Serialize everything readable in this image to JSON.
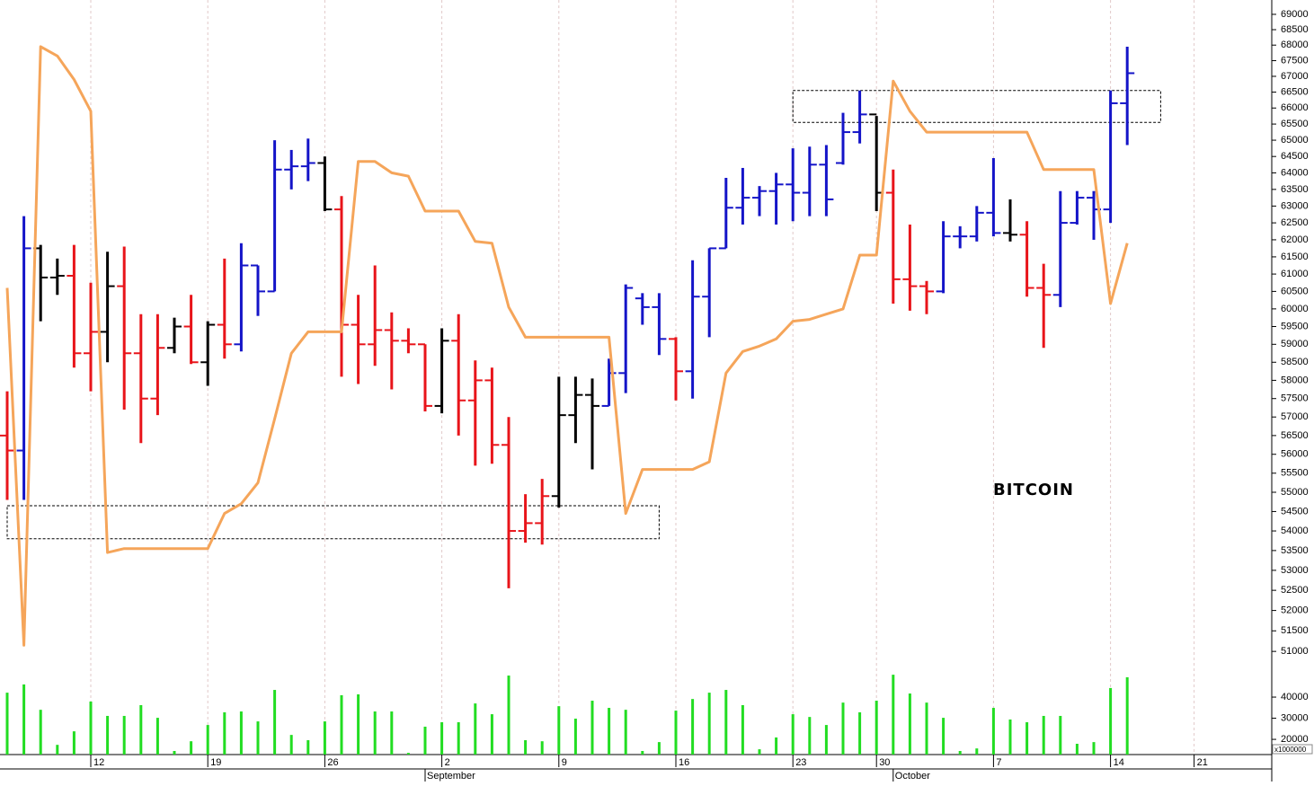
{
  "chart_data": {
    "type": "ohlc",
    "label": "BITCOIN",
    "y_scale": "log",
    "categories": [
      null,
      null,
      null,
      null,
      null,
      "12",
      null,
      null,
      null,
      null,
      null,
      null,
      "19",
      null,
      null,
      null,
      null,
      null,
      null,
      "26",
      null,
      null,
      null,
      null,
      null,
      null,
      "2",
      null,
      null,
      null,
      null,
      null,
      null,
      "9",
      null,
      null,
      null,
      null,
      null,
      null,
      "16",
      null,
      null,
      null,
      null,
      null,
      null,
      "23",
      null,
      null,
      null,
      null,
      "30",
      null,
      null,
      null,
      null,
      null,
      null,
      "7",
      null,
      null,
      null,
      null,
      null,
      null,
      "14",
      null,
      null,
      null,
      null,
      "21",
      null,
      null,
      null,
      null
    ],
    "month_labels": [
      null,
      null,
      null,
      null,
      null,
      null,
      null,
      null,
      null,
      null,
      null,
      null,
      null,
      null,
      null,
      null,
      null,
      null,
      null,
      null,
      null,
      null,
      null,
      null,
      null,
      "September",
      null,
      null,
      null,
      null,
      null,
      null,
      null,
      null,
      null,
      null,
      null,
      null,
      null,
      null,
      null,
      null,
      null,
      null,
      null,
      null,
      null,
      null,
      null,
      null,
      null,
      null,
      null,
      "October",
      null,
      null,
      null,
      null,
      null,
      null,
      null,
      null,
      null,
      null,
      null,
      null,
      null,
      null,
      null,
      null,
      null,
      null,
      null,
      null,
      null,
      null
    ],
    "open": [
      56500,
      56100,
      61750,
      60900,
      60950,
      58750,
      59350,
      60650,
      58750,
      57500,
      58900,
      59500,
      58500,
      59550,
      59000,
      61250,
      60500,
      64100,
      64200,
      64300,
      62900,
      59550,
      59000,
      59400,
      59100,
      59000,
      57300,
      59100,
      57450,
      58000,
      56250,
      54000,
      54200,
      54900,
      57050,
      57600,
      57300,
      58200,
      60300,
      60050,
      59150,
      58250,
      60350,
      61750,
      62950,
      63250,
      63450,
      63650,
      63400,
      64250,
      64300,
      65250,
      65800,
      63400,
      60850,
      60650,
      60500,
      62100,
      62100,
      62800,
      62200,
      62150,
      60600,
      60400,
      62500,
      63250,
      62900,
      66150,
      null,
      null,
      null,
      null,
      null,
      null,
      null,
      null
    ],
    "high": [
      57700,
      62700,
      61850,
      61450,
      61850,
      60750,
      61650,
      61800,
      59850,
      59850,
      59750,
      60400,
      59650,
      61450,
      61900,
      61250,
      65000,
      64700,
      65050,
      64500,
      63300,
      60400,
      61250,
      59900,
      59450,
      59000,
      59450,
      59850,
      58550,
      58350,
      57000,
      54950,
      55350,
      58100,
      58100,
      58050,
      58600,
      60700,
      60450,
      60450,
      59200,
      61400,
      61750,
      63850,
      64150,
      63600,
      64000,
      64750,
      64800,
      64850,
      65850,
      66550,
      65750,
      64100,
      62450,
      60800,
      62550,
      62400,
      63000,
      64450,
      63200,
      62550,
      61300,
      63450,
      63450,
      63450,
      66550,
      67950,
      null,
      null,
      null,
      null,
      null,
      null,
      null,
      null
    ],
    "low": [
      54800,
      54800,
      59650,
      60400,
      58350,
      57700,
      58500,
      57200,
      56300,
      57050,
      58750,
      58450,
      57850,
      58600,
      58800,
      59800,
      60500,
      63500,
      63750,
      62850,
      58100,
      57900,
      58400,
      57750,
      58750,
      57150,
      57100,
      56500,
      55700,
      55750,
      52550,
      53700,
      53650,
      54600,
      56300,
      55600,
      57300,
      57650,
      59550,
      58700,
      57450,
      57500,
      59200,
      61750,
      62450,
      62700,
      62450,
      62550,
      62700,
      62700,
      64250,
      64900,
      62850,
      60150,
      59950,
      59850,
      60450,
      61750,
      61950,
      62100,
      61950,
      60350,
      58900,
      60050,
      62450,
      62000,
      62500,
      64850,
      null,
      null,
      null,
      null,
      null,
      null,
      null,
      null
    ],
    "close": [
      56100,
      61750,
      60900,
      60950,
      58750,
      59350,
      60650,
      58750,
      57500,
      58900,
      59500,
      58500,
      59550,
      59000,
      61250,
      60500,
      64100,
      64200,
      64300,
      62900,
      59550,
      59000,
      59400,
      59100,
      59000,
      57300,
      59100,
      57450,
      58000,
      56250,
      54000,
      54200,
      54900,
      57050,
      57600,
      57300,
      58200,
      60600,
      60050,
      59150,
      58250,
      60350,
      61750,
      62950,
      63250,
      63450,
      63650,
      63400,
      64250,
      63200,
      65250,
      65800,
      63400,
      60850,
      60650,
      60500,
      62100,
      62100,
      62800,
      62200,
      62150,
      60600,
      60400,
      62500,
      63250,
      62900,
      66150,
      67100,
      null,
      null,
      null,
      null,
      null,
      null,
      null,
      null
    ],
    "bar_colors": [
      "#e8141a",
      "#1414c8",
      "#000000",
      "#000000",
      "#e8141a",
      "#e8141a",
      "#000000",
      "#e8141a",
      "#e8141a",
      "#e8141a",
      "#000000",
      "#e8141a",
      "#000000",
      "#e8141a",
      "#1414c8",
      "#1414c8",
      "#1414c8",
      "#1414c8",
      "#1414c8",
      "#000000",
      "#e8141a",
      "#e8141a",
      "#e8141a",
      "#e8141a",
      "#e8141a",
      "#e8141a",
      "#000000",
      "#e8141a",
      "#e8141a",
      "#e8141a",
      "#e8141a",
      "#e8141a",
      "#e8141a",
      "#000000",
      "#000000",
      "#000000",
      "#1414c8",
      "#1414c8",
      "#1414c8",
      "#1414c8",
      "#e8141a",
      "#1414c8",
      "#1414c8",
      "#1414c8",
      "#1414c8",
      "#1414c8",
      "#1414c8",
      "#1414c8",
      "#1414c8",
      "#1414c8",
      "#1414c8",
      "#1414c8",
      "#000000",
      "#e8141a",
      "#e8141a",
      "#e8141a",
      "#1414c8",
      "#1414c8",
      "#1414c8",
      "#1414c8",
      "#000000",
      "#e8141a",
      "#e8141a",
      "#1414c8",
      "#1414c8",
      "#1414c8",
      "#1414c8",
      "#1414c8",
      null,
      null,
      null,
      null,
      null,
      null,
      null,
      null
    ],
    "line": {
      "color": "#f5a55a",
      "values": [
        60600,
        51150,
        67950,
        67650,
        66900,
        65900,
        53450,
        53550,
        53550,
        53550,
        53550,
        53550,
        53550,
        54450,
        54700,
        55250,
        56950,
        58750,
        59350,
        59350,
        59350,
        64350,
        64350,
        64000,
        63900,
        62850,
        62850,
        62850,
        61950,
        61900,
        60050,
        59200,
        59200,
        59200,
        59200,
        59200,
        59200,
        54450,
        55600,
        55600,
        55600,
        55600,
        55800,
        58200,
        58800,
        58950,
        59150,
        59650,
        59700,
        59850,
        60000,
        61550,
        61550,
        66850,
        65900,
        65250,
        65250,
        65250,
        65250,
        65250,
        65250,
        65250,
        64100,
        64100,
        64100,
        64100,
        60150,
        61900,
        null,
        null,
        null,
        null,
        null,
        null,
        null,
        null
      ]
    },
    "ylim": [
      50700,
      69400
    ],
    "yticks": [
      51000,
      51500,
      52000,
      52500,
      53000,
      53500,
      54000,
      54500,
      55000,
      55500,
      56000,
      56500,
      57000,
      57500,
      58000,
      58500,
      59000,
      59500,
      60000,
      60500,
      61000,
      61500,
      62000,
      62500,
      63000,
      63500,
      64000,
      64500,
      65000,
      65500,
      66000,
      66500,
      67000,
      67500,
      68000,
      68500,
      69000
    ],
    "volume": {
      "color": "#22dd22",
      "unit_label": "x1000000",
      "values": [
        42100,
        46000,
        34000,
        17400,
        23800,
        37900,
        31100,
        31100,
        36200,
        30200,
        14500,
        19100,
        26800,
        32800,
        33200,
        28500,
        43400,
        22100,
        19600,
        28500,
        40900,
        41300,
        33200,
        33200,
        13600,
        26000,
        28100,
        28100,
        37000,
        31900,
        50200,
        19600,
        19100,
        35700,
        29800,
        38300,
        34900,
        34000,
        14500,
        18700,
        33600,
        39100,
        42100,
        43400,
        36200,
        15300,
        20900,
        31900,
        30600,
        26800,
        37400,
        32800,
        38300,
        50600,
        41700,
        37400,
        30200,
        14500,
        15700,
        34900,
        29400,
        28100,
        31100,
        31100,
        17900,
        18700,
        44300,
        49400,
        null,
        null,
        null,
        null,
        null,
        null,
        null,
        null
      ],
      "ylim": [
        12800,
        53200
      ],
      "yticks": [
        20000,
        30000,
        40000
      ]
    },
    "boxes": [
      {
        "x_start": 0,
        "x_end": 39,
        "y_low": 53800,
        "y_high": 54650
      },
      {
        "x_start": 47,
        "x_end": 69,
        "y_low": 65550,
        "y_high": 66550
      }
    ],
    "grid": true
  }
}
